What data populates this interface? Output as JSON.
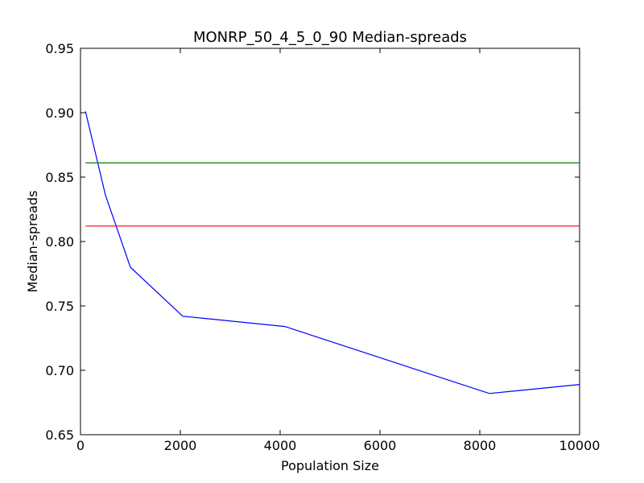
{
  "chart_data": {
    "type": "line",
    "title": "MONRP_50_4_5_0_90 Median-spreads",
    "xlabel": "Population Size",
    "ylabel": "Median-spreads",
    "xlim": [
      0,
      10000
    ],
    "ylim": [
      0.65,
      0.95
    ],
    "xticks": [
      0,
      2000,
      4000,
      6000,
      8000,
      10000
    ],
    "xtick_labels": [
      "0",
      "2000",
      "4000",
      "6000",
      "8000",
      "10000"
    ],
    "yticks": [
      0.65,
      0.7,
      0.75,
      0.8,
      0.85,
      0.9,
      0.95
    ],
    "ytick_labels": [
      "0.65",
      "0.70",
      "0.75",
      "0.80",
      "0.85",
      "0.90",
      "0.95"
    ],
    "grid": false,
    "series": [
      {
        "color": "#0000ff",
        "x": [
          100,
          500,
          1000,
          2048,
          4096,
          8192,
          10000
        ],
        "y": [
          0.901,
          0.836,
          0.78,
          0.742,
          0.734,
          0.682,
          0.689
        ]
      },
      {
        "color": "#008000",
        "x": [
          100,
          10000
        ],
        "y": [
          0.861,
          0.861
        ]
      },
      {
        "color": "#ff0000",
        "x": [
          100,
          10000
        ],
        "y": [
          0.812,
          0.812
        ]
      }
    ]
  }
}
